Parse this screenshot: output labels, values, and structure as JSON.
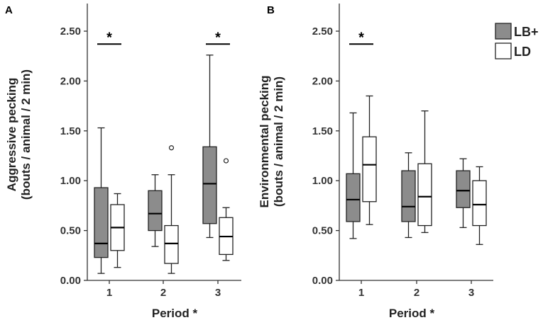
{
  "chart_data": [
    {
      "panel": "A",
      "type": "box",
      "ylabel": "Aggressive pecking\n(bouts / animal / 2 min)",
      "xlabel": "Period *",
      "categories": [
        "1",
        "2",
        "3"
      ],
      "ylim": [
        0,
        2.75
      ],
      "yticks": [
        "0.00",
        "0.50",
        "1.00",
        "1.50",
        "2.00",
        "2.50"
      ],
      "series": [
        {
          "name": "LB+",
          "boxes": [
            {
              "min": 0.07,
              "q1": 0.23,
              "median": 0.37,
              "q3": 0.93,
              "max": 1.53,
              "outliers": []
            },
            {
              "min": 0.34,
              "q1": 0.5,
              "median": 0.67,
              "q3": 0.9,
              "max": 1.06,
              "outliers": []
            },
            {
              "min": 0.43,
              "q1": 0.57,
              "median": 0.97,
              "q3": 1.34,
              "max": 2.26,
              "outliers": []
            }
          ]
        },
        {
          "name": "LD",
          "boxes": [
            {
              "min": 0.13,
              "q1": 0.3,
              "median": 0.53,
              "q3": 0.76,
              "max": 0.87,
              "outliers": []
            },
            {
              "min": 0.07,
              "q1": 0.17,
              "median": 0.37,
              "q3": 0.55,
              "max": 1.06,
              "outliers": [
                1.33
              ]
            },
            {
              "min": 0.2,
              "q1": 0.26,
              "median": 0.44,
              "q3": 0.63,
              "max": 0.73,
              "outliers": [
                1.2
              ]
            }
          ]
        }
      ],
      "significance": [
        {
          "category": "1",
          "y": 2.37,
          "label": "*"
        },
        {
          "category": "3",
          "y": 2.37,
          "label": "*"
        }
      ]
    },
    {
      "panel": "B",
      "type": "box",
      "ylabel": "Environmental pecking\n(bouts / animal / 2 min)",
      "xlabel": "Period *",
      "categories": [
        "1",
        "2",
        "3"
      ],
      "ylim": [
        0,
        2.75
      ],
      "yticks": [
        "0.00",
        "0.50",
        "1.00",
        "1.50",
        "2.00",
        "2.50"
      ],
      "series": [
        {
          "name": "LB+",
          "boxes": [
            {
              "min": 0.42,
              "q1": 0.59,
              "median": 0.81,
              "q3": 1.07,
              "max": 1.68,
              "outliers": []
            },
            {
              "min": 0.43,
              "q1": 0.59,
              "median": 0.74,
              "q3": 1.1,
              "max": 1.28,
              "outliers": []
            },
            {
              "min": 0.53,
              "q1": 0.73,
              "median": 0.9,
              "q3": 1.1,
              "max": 1.22,
              "outliers": []
            }
          ]
        },
        {
          "name": "LD",
          "boxes": [
            {
              "min": 0.56,
              "q1": 0.79,
              "median": 1.16,
              "q3": 1.44,
              "max": 1.85,
              "outliers": []
            },
            {
              "min": 0.48,
              "q1": 0.55,
              "median": 0.84,
              "q3": 1.17,
              "max": 1.7,
              "outliers": []
            },
            {
              "min": 0.36,
              "q1": 0.55,
              "median": 0.76,
              "q3": 1.0,
              "max": 1.14,
              "outliers": []
            }
          ]
        }
      ],
      "significance": [
        {
          "category": "1",
          "y": 2.37,
          "label": "*"
        }
      ]
    }
  ],
  "legend": [
    {
      "label": "LB+",
      "color": "#8c8c8c"
    },
    {
      "label": "LD",
      "color": "#ffffff"
    }
  ],
  "colors": {
    "LB+": "#8c8c8c",
    "LD": "#ffffff",
    "line": "#222222",
    "axis": "#333333"
  }
}
